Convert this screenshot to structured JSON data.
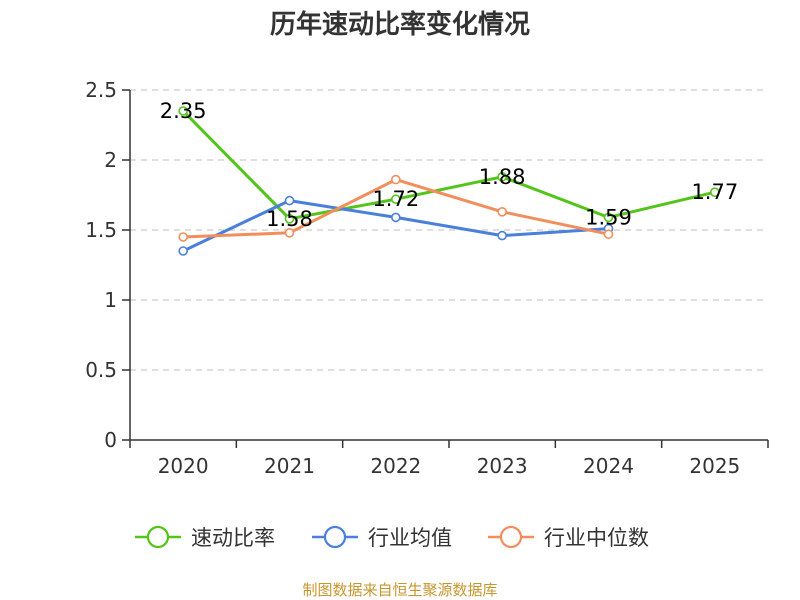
{
  "chart_data": {
    "type": "line",
    "title": "历年速动比率变化情况",
    "categories": [
      "2020",
      "2021",
      "2022",
      "2023",
      "2024",
      "2025"
    ],
    "ylim": [
      0,
      2.5
    ],
    "yticks": [
      "0",
      "0.5",
      "1",
      "1.5",
      "2",
      "2.5"
    ],
    "ytick_values": [
      0,
      0.5,
      1,
      1.5,
      2,
      2.5
    ],
    "grid": true,
    "legend_position": "bottom",
    "series": [
      {
        "name": "速动比率",
        "color": "#52c41a",
        "values": [
          2.35,
          1.58,
          1.72,
          1.88,
          1.59,
          1.77
        ],
        "labels": [
          "2.35",
          "1.58",
          "1.72",
          "1.88",
          "1.59",
          "1.77"
        ]
      },
      {
        "name": "行业均值",
        "color": "#4a7fdb",
        "values": [
          1.35,
          1.71,
          1.59,
          1.46,
          1.51,
          null
        ]
      },
      {
        "name": "行业中位数",
        "color": "#f28e5b",
        "values": [
          1.45,
          1.48,
          1.86,
          1.63,
          1.47,
          null
        ]
      }
    ],
    "source": "制图数据来自恒生聚源数据库"
  }
}
